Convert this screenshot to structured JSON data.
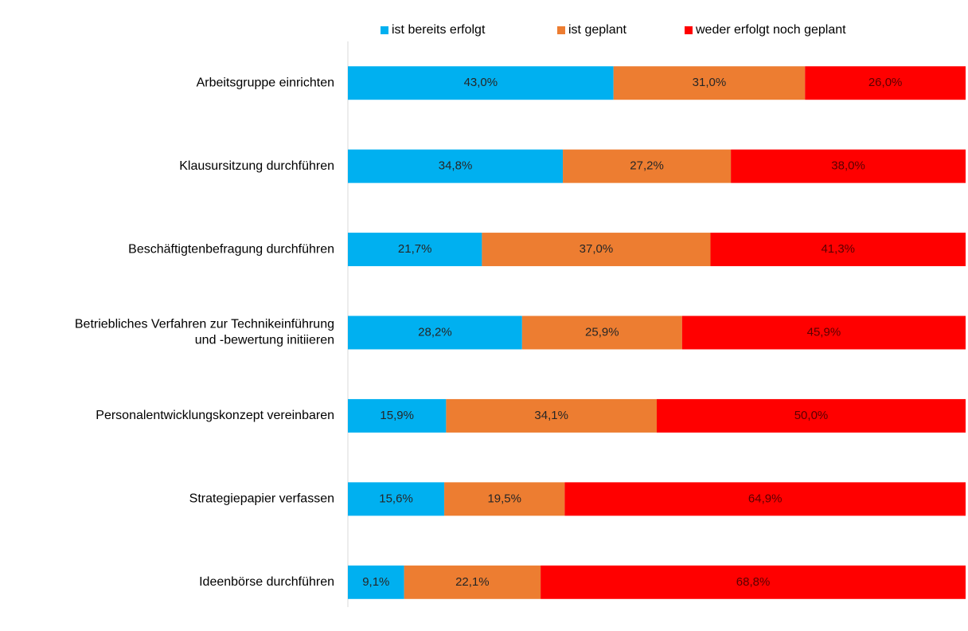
{
  "chart_data": {
    "type": "stacked_barh",
    "categories": [
      "Arbeitsgruppe einrichten",
      "Klausursitzung durchführen",
      "Beschäftigtenbefragung durchführen",
      [
        "Betriebliches Verfahren zur Technikeinführung",
        "und -bewertung initiieren"
      ],
      "Personalentwicklungskonzept vereinbaren",
      "Strategiepapier verfassen",
      "Ideenbörse durchführen"
    ],
    "series": [
      {
        "name": "ist bereits erfolgt",
        "color": "#00b0f0",
        "values": [
          43.0,
          34.8,
          21.7,
          28.2,
          15.9,
          15.6,
          9.1
        ],
        "value_labels": [
          "43,0%",
          "34,8%",
          "21,7%",
          "28,2%",
          "15,9%",
          "15,6%",
          "9,1%"
        ]
      },
      {
        "name": "ist geplant",
        "color": "#ed7d31",
        "values": [
          31.0,
          27.2,
          37.0,
          25.9,
          34.1,
          19.5,
          22.1
        ],
        "value_labels": [
          "31,0%",
          "27,2%",
          "37,0%",
          "25,9%",
          "34,1%",
          "19,5%",
          "22,1%"
        ]
      },
      {
        "name": "weder erfolgt noch geplant",
        "color": "#ff0000",
        "values": [
          26.0,
          38.0,
          41.3,
          45.9,
          50.0,
          64.9,
          68.8
        ],
        "value_labels": [
          "26,0%",
          "38,0%",
          "41,3%",
          "45,9%",
          "50,0%",
          "64,9%",
          "68,8%"
        ]
      }
    ],
    "xlim": [
      0,
      100
    ],
    "legend": "top"
  }
}
